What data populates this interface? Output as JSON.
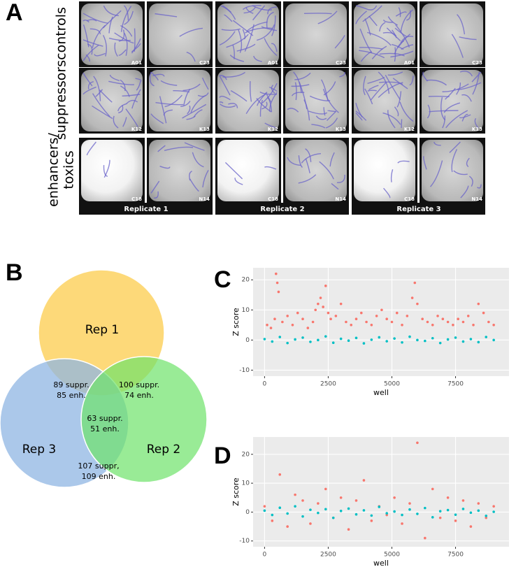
{
  "panel_labels": [
    "A",
    "B",
    "C",
    "D"
  ],
  "image_grid": {
    "rows": [
      {
        "label": [
          "controls"
        ],
        "wells": [
          "A01",
          "C23"
        ]
      },
      {
        "label": [
          "suppressors"
        ],
        "wells": [
          "K12",
          "K13"
        ]
      },
      {
        "label": [
          "enhancers/",
          "toxics"
        ],
        "wells": [
          "C18",
          "N14"
        ]
      }
    ],
    "replicates": [
      "Replicate 1",
      "Replicate 2",
      "Replicate 3"
    ]
  },
  "venn": {
    "sets": [
      "Rep 1",
      "Rep 2",
      "Rep 3"
    ],
    "regions": [
      [
        "89 suppr.",
        "85 enh."
      ],
      [
        "100 suppr.",
        "74  enh."
      ],
      [
        "63 suppr.",
        "51 enh."
      ],
      [
        "107 suppr,",
        "109 enh."
      ]
    ]
  },
  "chart_data": [
    {
      "type": "scatter",
      "x_label": "well",
      "y_label": "Z score",
      "xlim": [
        -450,
        9600
      ],
      "ylim": [
        -12,
        24
      ],
      "xticks": [
        0,
        2500,
        5000,
        7500
      ],
      "yticks": [
        -10,
        0,
        10,
        20
      ],
      "grid": true,
      "series": [
        {
          "color": "#f8766d",
          "x": [
            100,
            250,
            400,
            450,
            500,
            550,
            700,
            900,
            1100,
            1300,
            1500,
            1700,
            1900,
            2000,
            2100,
            2200,
            2300,
            2400,
            2500,
            2600,
            2800,
            3000,
            3200,
            3400,
            3600,
            3800,
            4000,
            4200,
            4400,
            4600,
            4800,
            5000,
            5200,
            5400,
            5600,
            5800,
            5900,
            6000,
            6200,
            6400,
            6600,
            6800,
            7000,
            7200,
            7400,
            7600,
            7800,
            8000,
            8200,
            8400,
            8600,
            8800,
            9000
          ],
          "values": [
            5,
            4,
            7,
            22,
            19,
            16,
            6,
            8,
            5,
            9,
            7,
            4,
            6,
            10,
            12,
            14,
            11,
            18,
            9,
            7,
            8,
            12,
            6,
            5,
            7,
            9,
            6,
            5,
            8,
            10,
            7,
            6,
            9,
            5,
            8,
            14,
            19,
            12,
            7,
            6,
            5,
            8,
            7,
            6,
            5,
            7,
            6,
            8,
            5,
            12,
            9,
            6,
            5
          ]
        },
        {
          "color": "#00bfc4",
          "x": [
            0,
            300,
            600,
            900,
            1200,
            1500,
            1800,
            2100,
            2400,
            2700,
            3000,
            3300,
            3600,
            3900,
            4200,
            4500,
            4800,
            5100,
            5400,
            5700,
            6000,
            6300,
            6600,
            6900,
            7200,
            7500,
            7800,
            8100,
            8400,
            8700,
            9000
          ],
          "values": [
            0.3,
            -0.5,
            1,
            -1,
            0.2,
            0.8,
            -0.6,
            0,
            1.2,
            -0.9,
            0.4,
            -0.2,
            0.7,
            -1.1,
            0.1,
            0.9,
            -0.4,
            0.5,
            -0.8,
            1.1,
            0,
            -0.3,
            0.6,
            -1,
            0.2,
            0.8,
            -0.5,
            0.3,
            -0.7,
            1,
            0
          ]
        }
      ]
    },
    {
      "type": "scatter",
      "x_label": "well",
      "y_label": "Z score",
      "xlim": [
        -450,
        9600
      ],
      "ylim": [
        -12,
        26
      ],
      "xticks": [
        0,
        2500,
        5000,
        7500
      ],
      "yticks": [
        -10,
        0,
        10,
        20
      ],
      "grid": true,
      "series": [
        {
          "color": "#f8766d",
          "x": [
            0,
            300,
            600,
            900,
            1200,
            1500,
            1800,
            2100,
            2400,
            2700,
            3000,
            3300,
            3600,
            3900,
            4200,
            4500,
            4800,
            5100,
            5400,
            5700,
            6000,
            6300,
            6600,
            6900,
            7200,
            7500,
            7800,
            8100,
            8400,
            8700,
            9000
          ],
          "values": [
            2,
            -3,
            13,
            -5,
            6,
            4,
            -4,
            3,
            8,
            -2,
            5,
            -6,
            4,
            11,
            -3,
            2,
            -1,
            5,
            -4,
            3,
            24,
            -9,
            8,
            -2,
            5,
            -3,
            4,
            -5,
            3,
            -2,
            2
          ]
        },
        {
          "color": "#00bfc4",
          "x": [
            0,
            300,
            600,
            900,
            1200,
            1500,
            1800,
            2100,
            2400,
            2700,
            3000,
            3300,
            3600,
            3900,
            4200,
            4500,
            4800,
            5100,
            5400,
            5700,
            6000,
            6300,
            6600,
            6900,
            7200,
            7500,
            7800,
            8100,
            8400,
            8700,
            9000
          ],
          "values": [
            0.5,
            -1,
            1.5,
            -0.5,
            2,
            -1.5,
            0.8,
            -0.3,
            1,
            -2,
            0.4,
            1.2,
            -0.8,
            0.6,
            -1.2,
            1.8,
            -0.4,
            0.2,
            -1,
            0.9,
            -0.6,
            1.4,
            -1.8,
            0.3,
            0.7,
            -0.9,
            1.1,
            -0.2,
            0.5,
            -1.3,
            0.1
          ]
        }
      ]
    }
  ]
}
